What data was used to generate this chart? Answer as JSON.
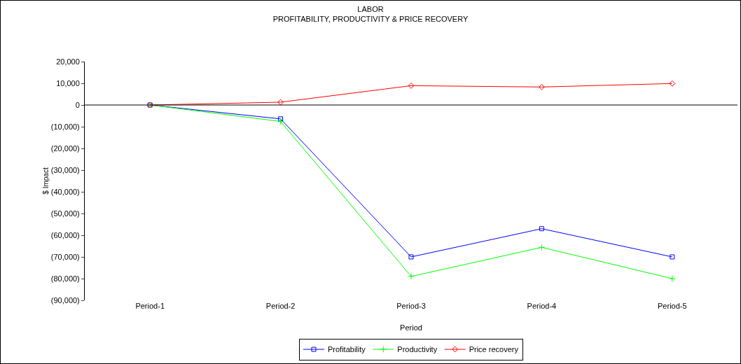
{
  "chart_data": {
    "type": "line",
    "title": "LABOR",
    "subtitle": "PROFITABILITY, PRODUCTIVITY & PRICE RECOVERY",
    "xlabel": "Period",
    "ylabel": "$ Impact",
    "categories": [
      "Period-1",
      "Period-2",
      "Period-3",
      "Period-4",
      "Period-5"
    ],
    "series": [
      {
        "name": "Profitability",
        "color": "#0000ff",
        "marker": "square",
        "values": [
          0,
          -6400,
          -70000,
          -57000,
          -70000
        ]
      },
      {
        "name": "Productivity",
        "color": "#00ff00",
        "marker": "cross",
        "values": [
          0,
          -7600,
          -79000,
          -65600,
          -80000
        ]
      },
      {
        "name": "Price recovery",
        "color": "#ff0000",
        "marker": "diamond",
        "values": [
          0,
          1300,
          8900,
          8300,
          9900
        ]
      }
    ],
    "ylim": [
      -90000,
      20000
    ],
    "yticks": [
      {
        "value": 20000,
        "label": "20,000"
      },
      {
        "value": 10000,
        "label": "10,000"
      },
      {
        "value": 0,
        "label": "0"
      },
      {
        "value": -10000,
        "label": "(10,000)"
      },
      {
        "value": -20000,
        "label": "(20,000)"
      },
      {
        "value": -30000,
        "label": "(30,000)"
      },
      {
        "value": -40000,
        "label": "(40,000)"
      },
      {
        "value": -50000,
        "label": "(50,000)"
      },
      {
        "value": -60000,
        "label": "(60,000)"
      },
      {
        "value": -70000,
        "label": "(70,000)"
      },
      {
        "value": -80000,
        "label": "(80,000)"
      },
      {
        "value": -90000,
        "label": "(90,000)"
      }
    ],
    "ref_lines": [
      {
        "axis": "y",
        "value": 0,
        "color": "#000000"
      }
    ],
    "grid": false,
    "legend": "bottom",
    "line_style": "solid"
  }
}
